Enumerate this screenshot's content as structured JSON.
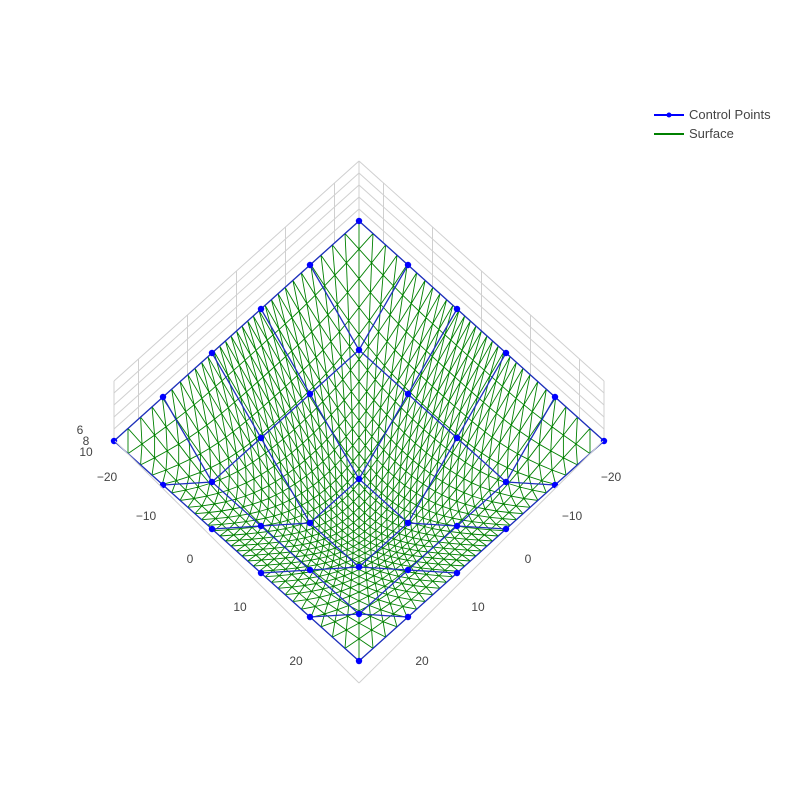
{
  "chart_data": {
    "type": "surface",
    "title": "",
    "grid": true,
    "legend_position": "top-right",
    "x_ticks": [
      "−20",
      "−10",
      "0",
      "10",
      "20"
    ],
    "y_ticks": [
      "−20",
      "−10",
      "0",
      "10",
      "20"
    ],
    "z_ticks": [
      "10",
      "8",
      "6"
    ],
    "xlim": [
      -25,
      25
    ],
    "ylim": [
      -25,
      25
    ],
    "zlim": [
      -5,
      11
    ],
    "control_points": {
      "name": "Control Points",
      "x": [
        -25,
        -15,
        -5,
        5,
        15,
        25
      ],
      "y": [
        -25,
        -15,
        -5,
        5,
        15,
        25
      ],
      "z": [
        [
          10,
          10,
          10,
          10,
          10,
          10
        ],
        [
          10,
          5,
          5,
          5,
          5,
          10
        ],
        [
          10,
          5,
          0,
          0,
          5,
          10
        ],
        [
          10,
          5,
          0,
          0,
          5,
          10
        ],
        [
          10,
          5,
          5,
          5,
          5,
          10
        ],
        [
          10,
          10,
          10,
          10,
          10,
          10
        ]
      ]
    },
    "surface": {
      "name": "Surface",
      "resolution": 30,
      "degree": 3
    },
    "colors": {
      "control_points": "#0000ff",
      "control_lines": "#1f2fbf",
      "surface": "#008000",
      "grid": "#d0d0d0",
      "axis": "#444444"
    },
    "legend": [
      {
        "label": "Control Points",
        "color": "#0000ff",
        "marker": true
      },
      {
        "label": "Surface",
        "color": "#008000",
        "marker": false
      }
    ]
  }
}
